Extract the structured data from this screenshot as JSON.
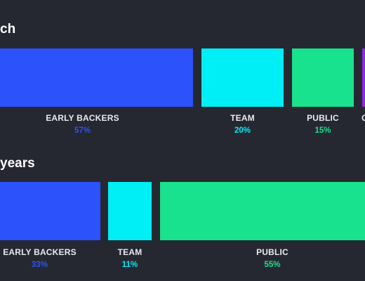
{
  "chart_data": [
    {
      "type": "bar",
      "title": "ch",
      "categories": [
        "EARLY BACKERS",
        "TEAM",
        "PUBLIC",
        ""
      ],
      "values": [
        57,
        20,
        15,
        null
      ],
      "value_labels": [
        "57%",
        "20%",
        "15%",
        ""
      ],
      "colors": [
        "#2b52fb",
        "#00eef5",
        "#18e28e",
        "#8a2be2"
      ]
    },
    {
      "type": "bar",
      "title": "years",
      "categories": [
        "EARLY BACKERS",
        "TEAM",
        "PUBLIC"
      ],
      "values": [
        33,
        11,
        55
      ],
      "value_labels": [
        "33%",
        "11%",
        "55%"
      ],
      "colors": [
        "#2b52fb",
        "#00eef5",
        "#18e28e"
      ]
    }
  ],
  "peek_label": "C",
  "label_color": "#e9eaf0",
  "background": "#262831"
}
